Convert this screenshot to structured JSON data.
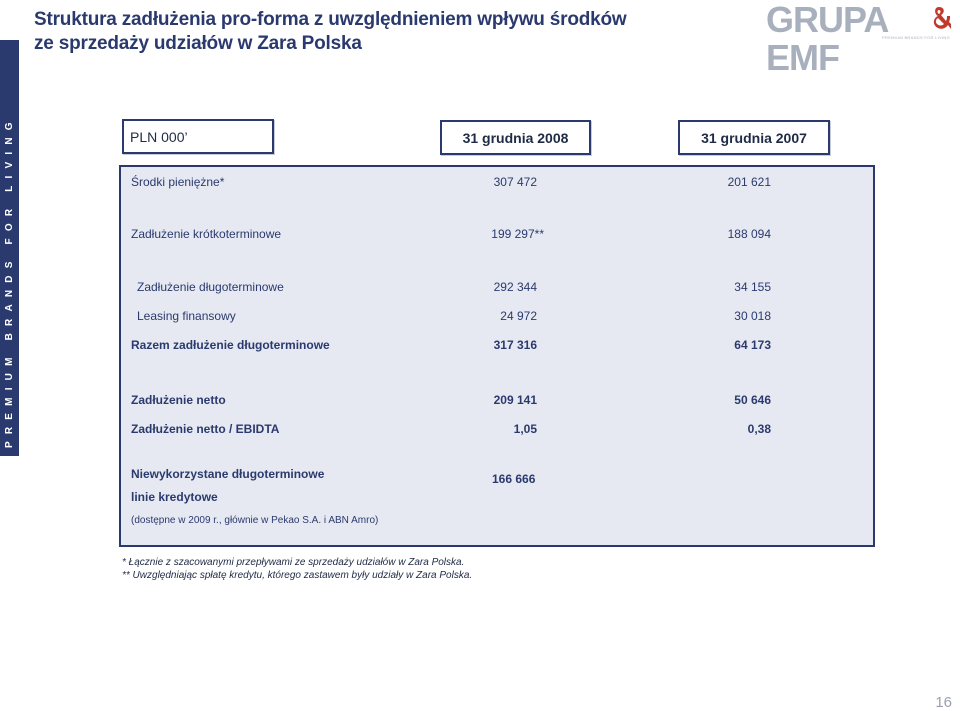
{
  "sidebar": {
    "text": "PREMIUM BRANDS FOR LIVING"
  },
  "title": {
    "line1": "Struktura zadłużenia pro-forma z uwzględnieniem wpływu środków",
    "line2": "ze sprzedaży udziałów w Zara Polska"
  },
  "logo": {
    "text": "GRUPA EMF",
    "subtitle": "PREMIUM BRANDS FOR LIVING"
  },
  "table": {
    "unit_label": "PLN 000’",
    "col1_header": "31 grudnia 2008",
    "col2_header": "31 grudnia 2007",
    "rows": [
      {
        "label": "Środki pieniężne*",
        "v1": "307 472",
        "v2": "201 621"
      },
      {
        "label": "Zadłużenie krótkoterminowe",
        "v1": "199 297**",
        "v2": "188 094"
      },
      {
        "label": "Zadłużenie długoterminowe",
        "v1": "292 344",
        "v2": "34 155"
      },
      {
        "label": "Leasing finansowy",
        "v1": "24 972",
        "v2": "30 018"
      },
      {
        "label": "Razem zadłużenie długoterminowe",
        "v1": "317 316",
        "v2": "64 173"
      },
      {
        "label": "Zadłużenie netto",
        "v1": "209 141",
        "v2": "50 646"
      },
      {
        "label": "Zadłużenie netto / EBIDTA",
        "v1": "1,05",
        "v2": "0,38"
      },
      {
        "label": "Niewykorzystane długoterminowe",
        "v1": "166 666"
      },
      {
        "label": "linie kredytowe"
      }
    ],
    "unused_note": "(dostępne w 2009 r., głównie w Pekao S.A. i ABN Amro)"
  },
  "footnotes": {
    "f1": "* Łącznie z szacowanymi przepływami ze sprzedaży udziałów w Zara Polska.",
    "f2": "** Uwzględniając spłatę kredytu, którego zastawem były udziały w Zara Polska."
  },
  "page_number": "16",
  "colors": {
    "navy": "#2b3a6e",
    "panel": "#e6e9f1",
    "logo_gray": "#a9b0bd",
    "logo_red": "#c0392b"
  }
}
